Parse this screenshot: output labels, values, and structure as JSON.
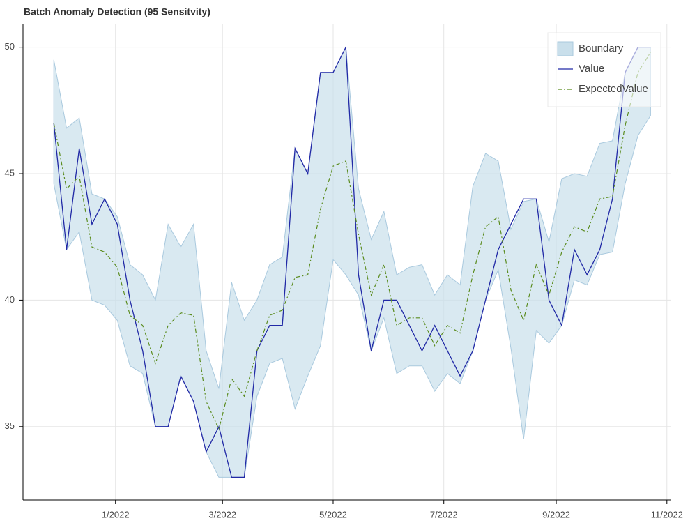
{
  "chart_data": {
    "type": "line",
    "title": "Batch Anomaly Detection (95 Sensitvity)",
    "x": [
      "2021-11-28",
      "2021-12-05",
      "2021-12-12",
      "2021-12-19",
      "2021-12-26",
      "2022-01-02",
      "2022-01-09",
      "2022-01-16",
      "2022-01-23",
      "2022-01-30",
      "2022-02-06",
      "2022-02-13",
      "2022-02-20",
      "2022-02-27",
      "2022-03-06",
      "2022-03-13",
      "2022-03-20",
      "2022-03-27",
      "2022-04-03",
      "2022-04-10",
      "2022-04-17",
      "2022-04-24",
      "2022-05-01",
      "2022-05-08",
      "2022-05-15",
      "2022-05-22",
      "2022-05-29",
      "2022-06-05",
      "2022-06-12",
      "2022-06-19",
      "2022-06-26",
      "2022-07-03",
      "2022-07-10",
      "2022-07-17",
      "2022-07-24",
      "2022-07-31",
      "2022-08-07",
      "2022-08-14",
      "2022-08-21",
      "2022-08-28",
      "2022-09-04",
      "2022-09-11",
      "2022-09-18",
      "2022-09-25",
      "2022-10-02",
      "2022-10-09",
      "2022-10-16",
      "2022-10-23"
    ],
    "band": {
      "name": "Boundary",
      "color": "#c9dfeb",
      "stroke": "#a9c9de",
      "upper": [
        49.5,
        46.8,
        47.2,
        44.2,
        44.0,
        43.3,
        41.4,
        41.0,
        40.0,
        43.0,
        42.1,
        43.0,
        38.0,
        36.5,
        40.7,
        39.2,
        40.0,
        41.4,
        41.7,
        46.0,
        45.0,
        49.0,
        49.0,
        50.0,
        44.4,
        42.4,
        43.5,
        41.0,
        41.3,
        41.4,
        40.2,
        41.0,
        40.6,
        44.5,
        45.8,
        45.5,
        42.8,
        43.9,
        44.0,
        42.3,
        44.8,
        45.0,
        44.9,
        46.2,
        46.3,
        49.0,
        50.0,
        50.0
      ],
      "lower": [
        44.6,
        42.0,
        42.7,
        40.0,
        39.8,
        39.2,
        37.4,
        37.1,
        35.0,
        35.0,
        37.0,
        36.0,
        34.0,
        33.0,
        33.0,
        33.0,
        36.2,
        37.5,
        37.7,
        35.7,
        37.0,
        38.2,
        41.6,
        41.0,
        40.2,
        38.0,
        39.3,
        37.1,
        37.4,
        37.4,
        36.4,
        37.1,
        36.7,
        38.0,
        40.0,
        41.2,
        38.1,
        34.5,
        38.8,
        38.3,
        39.0,
        40.8,
        40.6,
        41.8,
        41.9,
        44.6,
        46.5,
        47.3
      ]
    },
    "series": [
      {
        "name": "Value",
        "color": "#2129a6",
        "dash": "solid",
        "values": [
          47,
          42,
          46,
          43,
          44,
          43,
          40,
          38,
          35,
          35,
          37,
          36,
          34,
          35,
          33,
          33,
          38,
          39,
          39,
          46,
          45,
          49,
          49,
          50,
          41,
          38,
          40,
          40,
          39,
          38,
          39,
          38,
          37,
          38,
          40,
          42,
          43,
          44,
          44,
          40,
          39,
          42,
          41,
          42,
          44,
          49,
          50,
          50
        ]
      },
      {
        "name": "ExpectedValue",
        "color": "#5b8c1f",
        "dash": "dashdot",
        "values": [
          47.0,
          44.4,
          44.9,
          42.1,
          41.9,
          41.3,
          39.4,
          39.0,
          37.5,
          39.0,
          39.5,
          39.4,
          36.0,
          34.9,
          36.9,
          36.2,
          38.0,
          39.4,
          39.6,
          40.9,
          41.0,
          43.6,
          45.3,
          45.5,
          42.6,
          40.2,
          41.4,
          39.0,
          39.3,
          39.3,
          38.2,
          39.0,
          38.7,
          41.0,
          42.9,
          43.3,
          40.4,
          39.2,
          41.4,
          40.2,
          41.9,
          42.9,
          42.7,
          44.0,
          44.1,
          46.9,
          49.0,
          49.8
        ]
      }
    ],
    "xlim": [
      "2021-11-11",
      "2022-11-03"
    ],
    "xticks": [
      {
        "value": "2022-01-01",
        "label": "1/2022"
      },
      {
        "value": "2022-03-01",
        "label": "3/2022"
      },
      {
        "value": "2022-05-01",
        "label": "5/2022"
      },
      {
        "value": "2022-07-01",
        "label": "7/2022"
      },
      {
        "value": "2022-09-01",
        "label": "9/2022"
      },
      {
        "value": "2022-11-01",
        "label": "11/2022"
      }
    ],
    "ylim": [
      32.1,
      50.9
    ],
    "yticks": [
      35,
      40,
      45,
      50
    ],
    "grid": true,
    "legend": "top_right"
  }
}
